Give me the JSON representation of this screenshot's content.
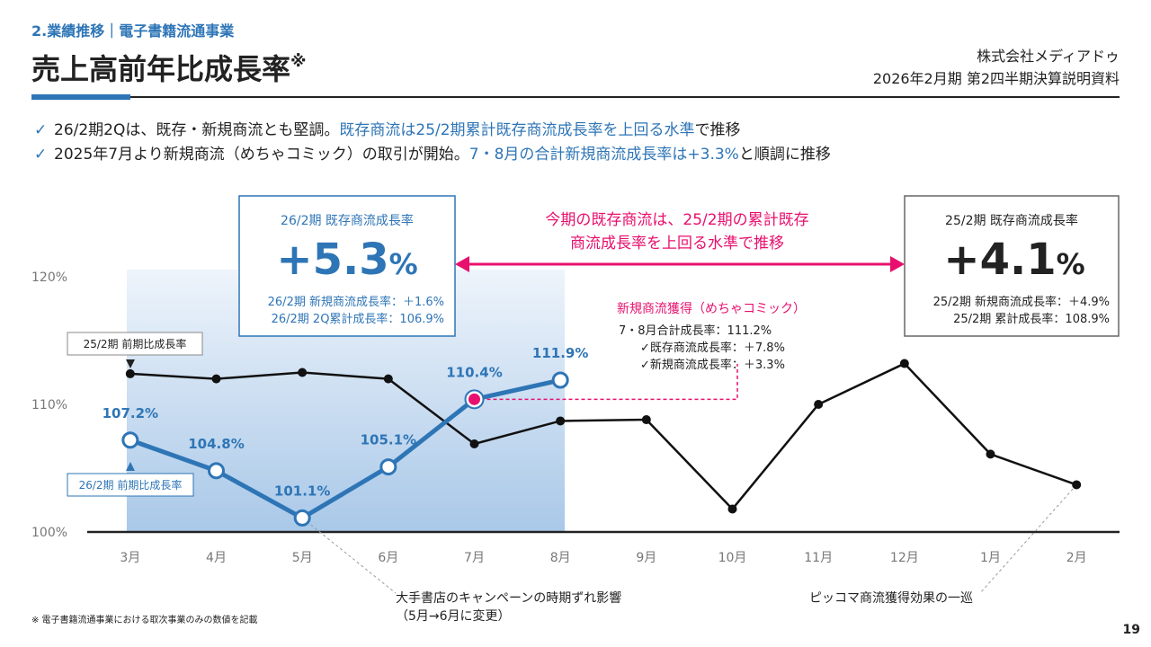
{
  "header": {
    "section": "2.業績推移｜電子書籍流通事業",
    "title": "売上高前年比成長率",
    "title_mark": "※",
    "company": "株式会社メディアドゥ",
    "document": "2026年2月期 第2四半期決算説明資料"
  },
  "bullets": [
    [
      "26/2期2Qは、既存・新規商流とも堅調。",
      "既存商流は25/2期累計既存商流成長率を上回る水準",
      "で推移"
    ],
    [
      "2025年7月より新規商流（めちゃコミック）の取引が開始。",
      "7・8月の合計新規商流成長率は+3.3%",
      "と順調に推移"
    ]
  ],
  "left_box": {
    "label": "26/2期 既存商流成長率",
    "big": "+5.3",
    "unit": "%",
    "lines": [
      "26/2期 新規商流成長率：＋1.6%",
      "26/2期 2Q累計成長率：106.9%"
    ]
  },
  "right_box": {
    "label": "25/2期 既存商流成長率",
    "big": "+4.1",
    "unit": "%",
    "lines": [
      "25/2期 新規商流成長率：＋4.9%",
      "25/2期 累計成長率：108.9%"
    ]
  },
  "center_note": [
    "今期の既存商流は、25/2期の累計既存",
    "商流成長率を上回る水準で推移"
  ],
  "new_note": {
    "title": "新規商流獲得（めちゃコミック）",
    "lines": [
      "7・8月合計成長率：111.2%",
      "✓既存商流成長率：＋7.8%",
      "✓新規商流成長率：＋3.3%"
    ]
  },
  "annotations": [
    [
      "大手書店のキャンペーンの時期ずれ影響",
      "（5月→6月に変更）"
    ],
    [
      "ピッコマ商流獲得効果の一巡"
    ]
  ],
  "footnote": "※ 電子書籍流通事業における取次事業のみの数値を記載",
  "page": "19",
  "chart_data": {
    "type": "line",
    "categories": [
      "3月",
      "4月",
      "5月",
      "6月",
      "7月",
      "8月",
      "9月",
      "10月",
      "11月",
      "12月",
      "1月",
      "2月"
    ],
    "series": [
      {
        "name": "25/2期 前期比成長率",
        "color": "#111111",
        "values": [
          112.4,
          112.0,
          112.5,
          112.0,
          106.9,
          108.7,
          108.8,
          101.8,
          110.0,
          113.2,
          106.1,
          103.7
        ]
      },
      {
        "name": "26/2期 前期比成長率",
        "color": "#2e75b6",
        "values": [
          107.2,
          104.8,
          101.1,
          105.1,
          110.4,
          111.9,
          null,
          null,
          null,
          null,
          null,
          null
        ],
        "value_labels": [
          "107.2%",
          "104.8%",
          "101.1%",
          "105.1%",
          "110.4%",
          "111.9%",
          null,
          null,
          null,
          null,
          null,
          null
        ]
      }
    ],
    "ylim": [
      100,
      120
    ],
    "yticks": [
      {
        "value": 100,
        "label": "100%"
      },
      {
        "value": 110,
        "label": "110%"
      },
      {
        "value": 120,
        "label": "120%"
      }
    ]
  }
}
